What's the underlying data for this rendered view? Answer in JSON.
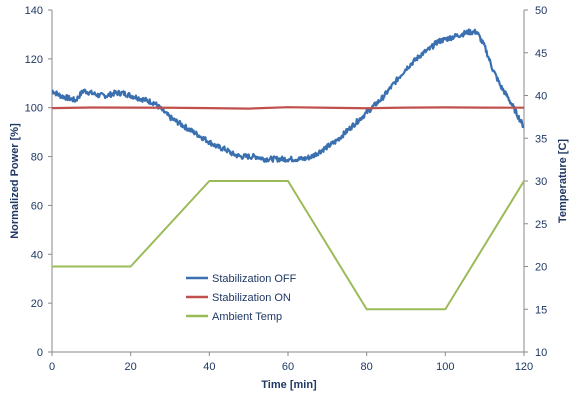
{
  "chart_data": {
    "type": "line",
    "title": "",
    "xlabel": "Time [min]",
    "ylabel_left": "Normalized Power [%]",
    "ylabel_right": "Temperature [C]",
    "xlim": [
      0,
      120
    ],
    "ylim_left": [
      0,
      140
    ],
    "ylim_right": [
      10,
      50
    ],
    "x_ticks": [
      0,
      20,
      40,
      60,
      80,
      100,
      120
    ],
    "y_left_ticks": [
      0,
      20,
      40,
      60,
      80,
      100,
      120,
      140
    ],
    "y_right_ticks": [
      10,
      15,
      20,
      25,
      30,
      35,
      40,
      45,
      50
    ],
    "grid": false,
    "legend_position": "bottom-center",
    "series": [
      {
        "name": "Stabilization OFF",
        "axis": "left",
        "color": "#3a70b0",
        "x": [
          0,
          2,
          4,
          6,
          8,
          10,
          12,
          14,
          16,
          18,
          20,
          22,
          24,
          26,
          28,
          30,
          32,
          34,
          36,
          38,
          40,
          42,
          44,
          46,
          48,
          50,
          52,
          54,
          56,
          58,
          60,
          62,
          64,
          66,
          68,
          70,
          72,
          74,
          76,
          78,
          80,
          82,
          84,
          86,
          88,
          90,
          92,
          94,
          96,
          98,
          100,
          102,
          104,
          106,
          108,
          110,
          112,
          114,
          116,
          118,
          120
        ],
        "y": [
          107,
          105,
          104,
          103,
          107,
          106,
          105,
          105,
          106,
          106,
          105,
          104,
          103,
          102,
          99,
          96,
          94,
          92,
          90,
          88,
          86,
          84,
          83,
          81,
          80,
          80,
          80,
          79,
          79,
          79,
          79,
          79,
          79,
          80,
          82,
          84,
          86,
          89,
          92,
          95,
          98,
          101,
          104,
          108,
          112,
          116,
          119,
          122,
          124,
          127,
          128,
          129,
          130,
          131,
          131,
          125,
          116,
          109,
          104,
          98,
          92
        ]
      },
      {
        "name": "Stabilization ON",
        "axis": "left",
        "color": "#c0504d",
        "x": [
          0,
          120
        ],
        "y": [
          100,
          100
        ]
      },
      {
        "name": "Ambient Temp",
        "axis": "right",
        "color": "#9bbb59",
        "x": [
          0,
          20,
          40,
          60,
          80,
          100,
          120
        ],
        "y": [
          20,
          20,
          30,
          30,
          15,
          15,
          30
        ]
      }
    ]
  }
}
